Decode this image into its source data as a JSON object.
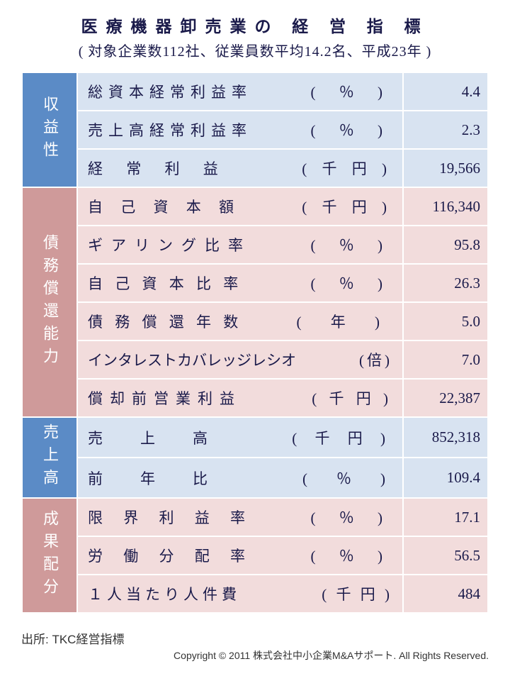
{
  "title": "医療機器卸売業の 経 営 指 標",
  "subtitle": "( 対象企業数112社、従業員数平均14.2名、平成23年 )",
  "colors": {
    "cat_blue": "#5b8bc6",
    "cat_pink": "#cf9a9a",
    "row_blue": "#d8e3f1",
    "row_pink": "#f2dcdc",
    "text": "#1a1a4a",
    "border": "#ffffff"
  },
  "sections": [
    {
      "cat_label": "収益性",
      "cat_color": "blue",
      "rows": [
        {
          "name": "総資本経常利益率",
          "name_ls": "8px",
          "unit": "( ％ )",
          "unit_ls": "14px",
          "value": "4.4"
        },
        {
          "name": "売上高経常利益率",
          "name_ls": "8px",
          "unit": "( ％ )",
          "unit_ls": "14px",
          "value": "2.3"
        },
        {
          "name": "経 常 利 益",
          "name_ls": "14px",
          "unit": "( 千 円 )",
          "unit_ls": "8px",
          "value": "19,566"
        }
      ]
    },
    {
      "cat_label": "債務償還能力",
      "cat_color": "pink",
      "rows": [
        {
          "name": "自 己 資 本 額",
          "name_ls": "10px",
          "unit": "( 千 円 )",
          "unit_ls": "8px",
          "value": "116,340"
        },
        {
          "name": "ギアリング比率",
          "name_ls": "12px",
          "unit": "( ％ )",
          "unit_ls": "14px",
          "value": "95.8"
        },
        {
          "name": "自 己 資 本 比 率",
          "name_ls": "6px",
          "unit": "( ％ )",
          "unit_ls": "14px",
          "value": "26.3"
        },
        {
          "name": "債 務 償 還 年 数",
          "name_ls": "6px",
          "unit": "( 年 )",
          "unit_ls": "18px",
          "value": "5.0"
        },
        {
          "name": "インタレストカバレッジレシオ",
          "name_ls": "0px",
          "unit": "(倍)",
          "unit_ls": "4px",
          "value": "7.0"
        },
        {
          "name": "償却前営業利益",
          "name_ls": "10px",
          "unit": "( 千 円 )",
          "unit_ls": "6px",
          "value": "22,387"
        }
      ]
    },
    {
      "cat_label": "売上高",
      "cat_color": "blue",
      "rows": [
        {
          "name": "売　上　高",
          "name_ls": "16px",
          "unit": "( 千 円 )",
          "unit_ls": "10px",
          "value": "852,318"
        },
        {
          "name": "前　年　比",
          "name_ls": "16px",
          "unit": "(　％　)",
          "unit_ls": "10px",
          "value": "109.4"
        }
      ]
    },
    {
      "cat_label": "成果配分",
      "cat_color": "pink",
      "rows": [
        {
          "name": "限 界 利 益 率",
          "name_ls": "12px",
          "unit": "( ％ )",
          "unit_ls": "14px",
          "value": "17.1"
        },
        {
          "name": "労 働 分 配 率",
          "name_ls": "12px",
          "unit": "( ％ )",
          "unit_ls": "14px",
          "value": "56.5"
        },
        {
          "name": "１人当たり人件費",
          "name_ls": "6px",
          "unit": "( 千 円 )",
          "unit_ls": "4px",
          "value": "484"
        }
      ]
    }
  ],
  "source": "出所: TKC経営指標",
  "copyright": "Copyright © 2011 株式会社中小企業M&Aサポート. All Rights Reserved."
}
